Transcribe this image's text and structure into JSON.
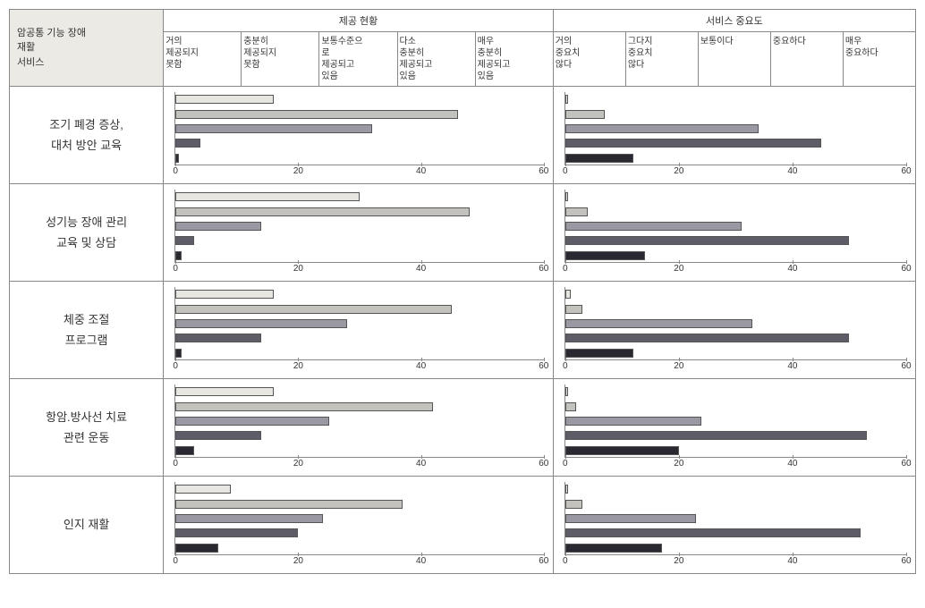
{
  "header": {
    "corner_line1": "암공통 기능 장애",
    "corner_line2": "재활",
    "corner_line3": "서비스",
    "section_left": "제공 현황",
    "section_right": "서비스 중요도",
    "left_cols": [
      "거의\n제공되지\n못함",
      "충분히\n제공되지\n못함",
      "보통수준으\n로\n제공되고\n있음",
      "다소\n충분히\n제공되고\n있음",
      "매우\n충분히\n제공되고\n있음"
    ],
    "right_cols": [
      "거의\n중요치\n않다",
      "그다지\n중요치\n않다",
      "보통이다",
      "중요하다",
      "매우\n중요하다"
    ]
  },
  "chart_style": {
    "bar_colors": [
      "#e8e6e0",
      "#c4c2bc",
      "#9a98a2",
      "#5e5c66",
      "#2a2830"
    ],
    "bar_border": "#555555",
    "axis_color": "#888888",
    "xmax": 60,
    "xticks": [
      0,
      20,
      40,
      60
    ],
    "tick_fontsize": 10
  },
  "rows": [
    {
      "label_line1": "조기 폐경 증상,",
      "label_line2": "대처 방안 교육",
      "left_values": [
        16,
        46,
        32,
        4,
        0.5
      ],
      "right_values": [
        0.5,
        7,
        34,
        45,
        12
      ]
    },
    {
      "label_line1": "성기능 장애 관리",
      "label_line2": "교육 및 상담",
      "left_values": [
        30,
        48,
        14,
        3,
        1
      ],
      "right_values": [
        0.5,
        4,
        31,
        50,
        14
      ]
    },
    {
      "label_line1": "체중 조절",
      "label_line2": "프로그램",
      "left_values": [
        16,
        45,
        28,
        14,
        1
      ],
      "right_values": [
        1,
        3,
        33,
        50,
        12
      ]
    },
    {
      "label_line1": "항암.방사선 치료",
      "label_line2": "관련 운동",
      "left_values": [
        16,
        42,
        25,
        14,
        3
      ],
      "right_values": [
        0.5,
        2,
        24,
        53,
        20
      ]
    },
    {
      "label_line1": "인지 재활",
      "label_line2": "",
      "left_values": [
        9,
        37,
        24,
        20,
        7
      ],
      "right_values": [
        0.5,
        3,
        23,
        52,
        17
      ]
    }
  ]
}
